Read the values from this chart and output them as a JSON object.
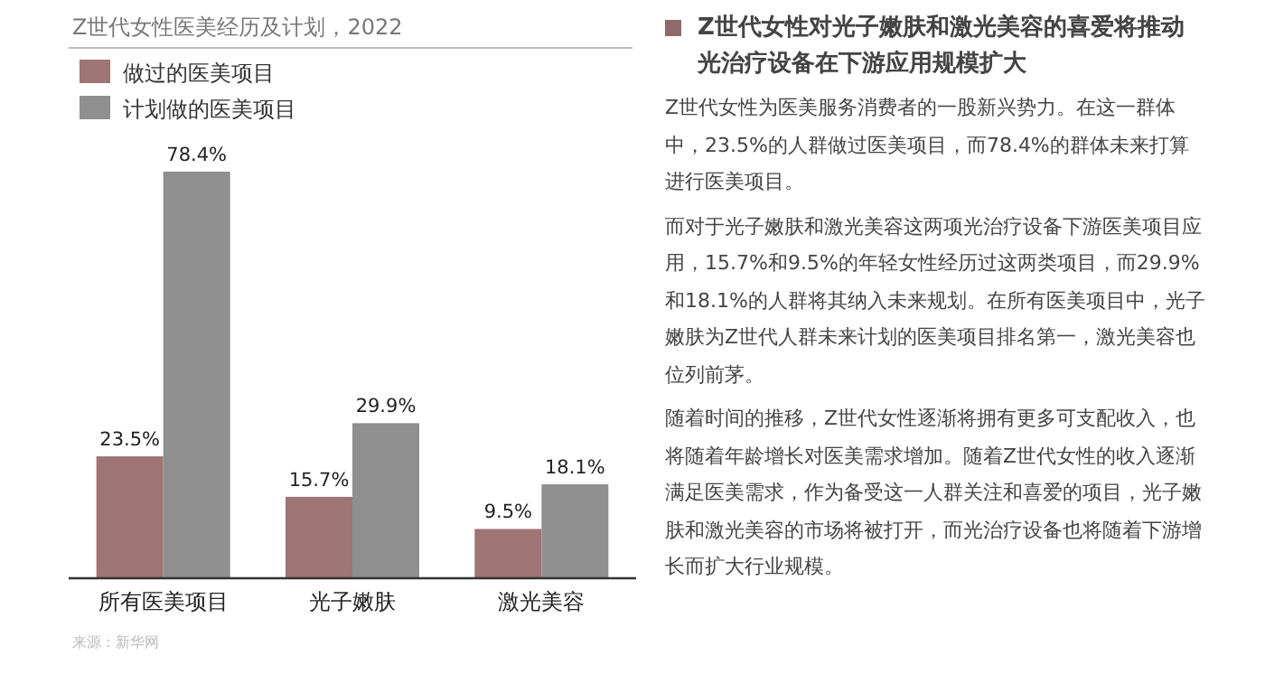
{
  "chart_data": [
    {
      "type": "bar",
      "title": "Z世代女性医美经历及计划，2022",
      "categories": [
        "所有医美项目",
        "光子嫩肤",
        "激光美容"
      ],
      "series": [
        {
          "name": "做过的医美项目",
          "color": "#9e7474",
          "values": [
            23.5,
            15.7,
            9.5
          ],
          "value_labels": [
            "23.5%",
            "15.7%",
            "9.5%"
          ]
        },
        {
          "name": "计划做的医美项目",
          "color": "#8f8f8f",
          "values": [
            78.4,
            29.9,
            18.1
          ],
          "value_labels": [
            "78.4%",
            "29.9%",
            "18.1%"
          ]
        }
      ],
      "legend": "top left",
      "annotations": [
        "来源：新华网"
      ]
    },
    {
      "type": "other",
      "title": "Z世代女性对光子嫩肤和激光美容的喜爱将推动光治疗设备在下游应用规模扩大",
      "annotations": [
        "Z世代女性为医美服务消费者的一股新兴势力。在这一群体中，23.5%的人群做过医美项目，而78.4%的群体未来打算进行医美项目。",
        "而对于光子嫩肤和激光美容这两项光治疗设备下游医美项目应用，15.7%和9.5%的年轻女性经历过这两类项目，而29.9%和18.1%的人群将其纳入未来规划。在所有医美项目中，光子嫩肤为Z世代人群未来计划的医美项目排名第一，激光美容也位列前茅。",
        "随着时间的推移，Z世代女性逐渐将拥有更多可支配收入，也将随着年龄增长对医美需求增加。随着Z世代女性的收入逐渐满足医美需求，作为备受这一人群关注和喜爱的项目，光子嫩肤和激光美容的市场将被打开，而光治疗设备也将随着下游增长而扩大行业规模。"
      ]
    }
  ]
}
